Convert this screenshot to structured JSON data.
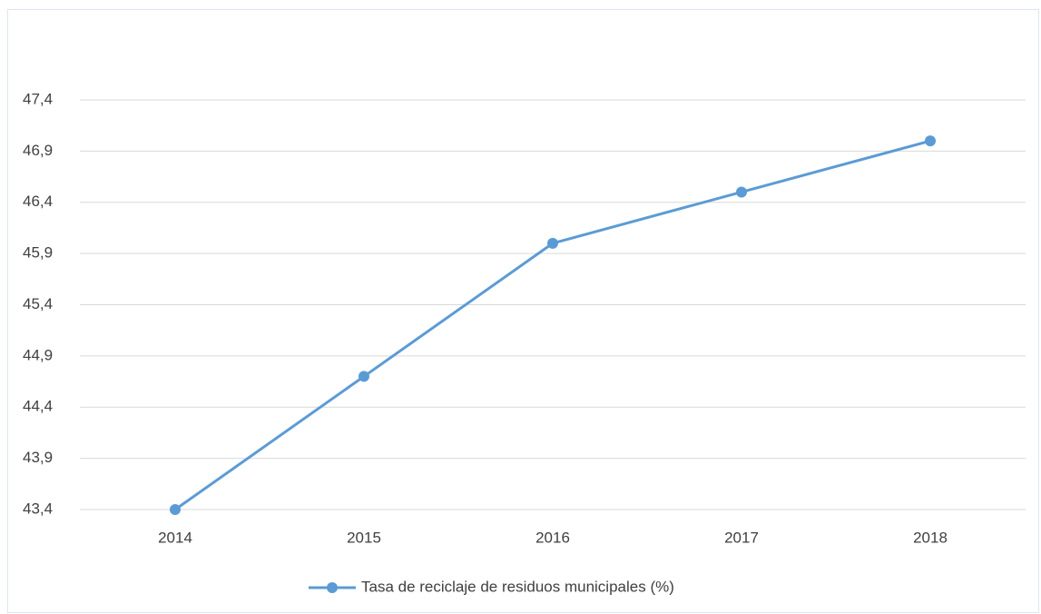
{
  "chart_data": {
    "type": "line",
    "categories": [
      "2014",
      "2015",
      "2016",
      "2017",
      "2018"
    ],
    "series": [
      {
        "name": "Tasa de reciclaje de residuos municipales (%)",
        "color": "#5b9bd5",
        "values": [
          43.4,
          44.7,
          46.0,
          46.5,
          47.0
        ]
      }
    ],
    "ylim": [
      43.4,
      47.4
    ],
    "yticks": [
      {
        "value": 43.4,
        "label": "43,4"
      },
      {
        "value": 43.9,
        "label": "43,9"
      },
      {
        "value": 44.4,
        "label": "44,4"
      },
      {
        "value": 44.9,
        "label": "44,9"
      },
      {
        "value": 45.4,
        "label": "45,4"
      },
      {
        "value": 45.9,
        "label": "45,9"
      },
      {
        "value": 46.4,
        "label": "46,4"
      },
      {
        "value": 46.9,
        "label": "46,9"
      },
      {
        "value": 47.4,
        "label": "47,4"
      }
    ],
    "grid": true,
    "legend": "bottom"
  }
}
